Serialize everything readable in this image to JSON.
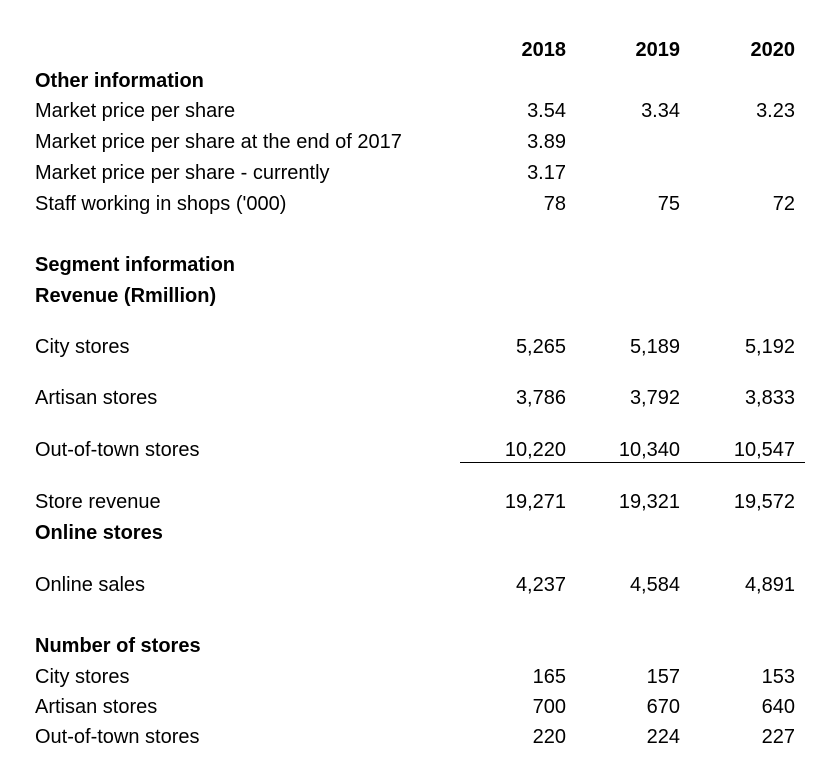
{
  "years": [
    "2018",
    "2019",
    "2020"
  ],
  "other": {
    "heading": "Other information",
    "rows": [
      {
        "label": "Market price per share",
        "values": [
          "3.54",
          "3.34",
          "3.23"
        ]
      },
      {
        "label": "Market price per share at the end of 2017",
        "values": [
          "3.89",
          "",
          ""
        ]
      },
      {
        "label": "Market price per share - currently",
        "values": [
          "3.17",
          "",
          ""
        ]
      },
      {
        "label": "Staff working in shops ('000)",
        "values": [
          "78",
          "75",
          "72"
        ]
      }
    ]
  },
  "segment": {
    "heading": "Segment information",
    "subheading": "Revenue (Rmillion)",
    "rows": [
      {
        "label": "City stores",
        "values": [
          "5,265",
          "5,189",
          "5,192"
        ]
      },
      {
        "label": "Artisan stores",
        "values": [
          "3,786",
          "3,792",
          "3,833"
        ]
      },
      {
        "label": "Out-of-town stores",
        "values": [
          "10,220",
          "10,340",
          "10,547"
        ]
      }
    ],
    "total": {
      "label": "Store revenue",
      "values": [
        "19,271",
        "19,321",
        "19,572"
      ]
    }
  },
  "online": {
    "heading": "Online stores",
    "rows": [
      {
        "label": "Online sales",
        "values": [
          "4,237",
          "4,584",
          "4,891"
        ]
      }
    ]
  },
  "store_count": {
    "heading": "Number of stores",
    "rows": [
      {
        "label": "City stores",
        "values": [
          "165",
          "157",
          "153"
        ]
      },
      {
        "label": "Artisan stores",
        "values": [
          "700",
          "670",
          "640"
        ]
      },
      {
        "label": "Out-of-town stores",
        "values": [
          "220",
          "224",
          "227"
        ]
      }
    ]
  }
}
